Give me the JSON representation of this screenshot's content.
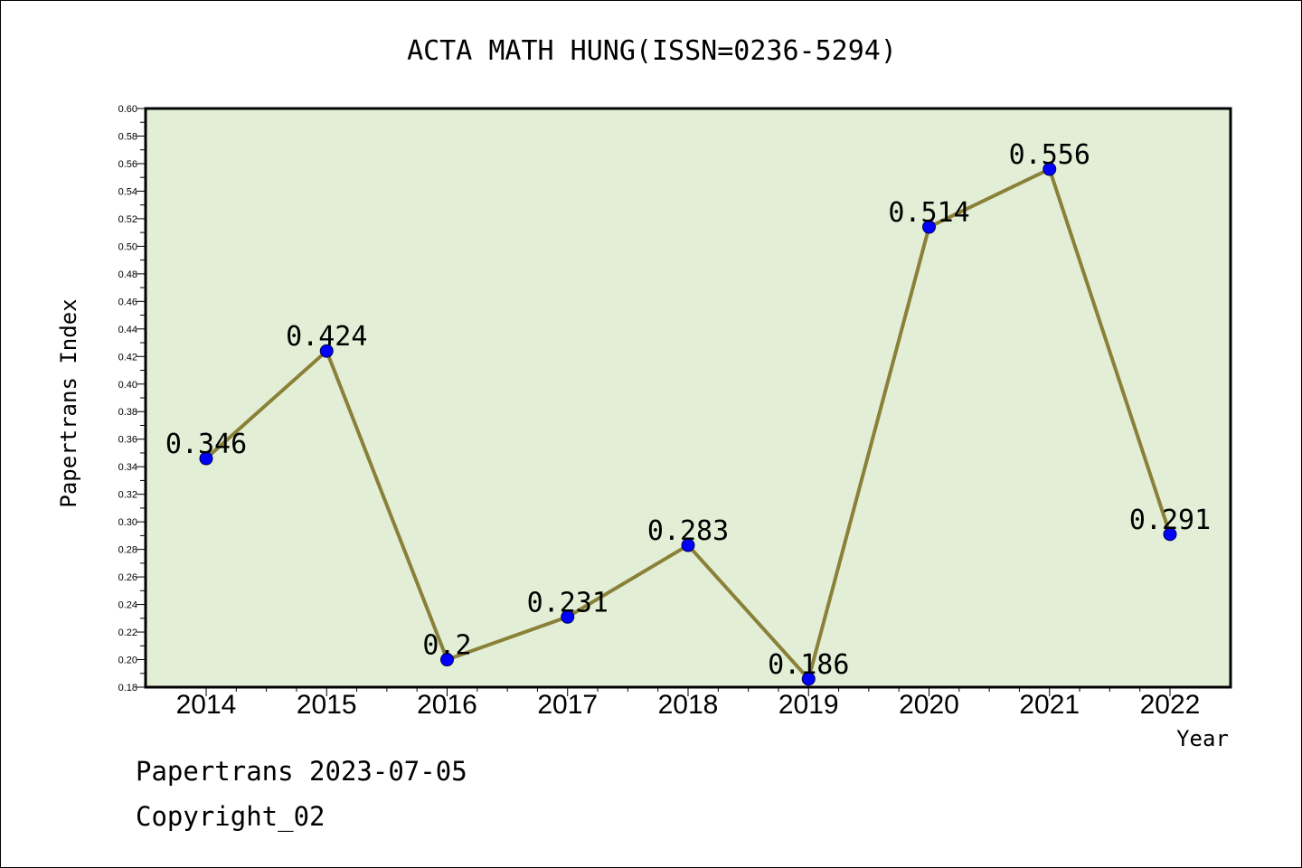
{
  "chart_data": {
    "type": "line",
    "title": "ACTA MATH HUNG(ISSN=0236-5294)",
    "xlabel": "Year",
    "ylabel": "Papertrans Index",
    "categories": [
      "2014",
      "2015",
      "2016",
      "2017",
      "2018",
      "2019",
      "2020",
      "2021",
      "2022"
    ],
    "values": [
      0.346,
      0.424,
      0.2,
      0.231,
      0.283,
      0.186,
      0.514,
      0.556,
      0.291
    ],
    "data_labels": [
      "0.346",
      "0.424",
      "0.2",
      "0.231",
      "0.283",
      "0.186",
      "0.514",
      "0.556",
      "0.291"
    ],
    "ylim": [
      0.18,
      0.6
    ],
    "yticks": [
      "0.18",
      "0.20",
      "0.22",
      "0.24",
      "0.26",
      "0.28",
      "0.30",
      "0.32",
      "0.34",
      "0.36",
      "0.38",
      "0.40",
      "0.42",
      "0.44",
      "0.46",
      "0.48",
      "0.50",
      "0.52",
      "0.54",
      "0.56",
      "0.58",
      "0.60"
    ],
    "grid": false,
    "legend": "none",
    "colors": {
      "plot_background": "#e2efd6",
      "line": "#8b8038",
      "marker": "#0000ff"
    }
  },
  "footer": {
    "source": "Papertrans 2023-07-05",
    "copyright": "Copyright_02"
  }
}
